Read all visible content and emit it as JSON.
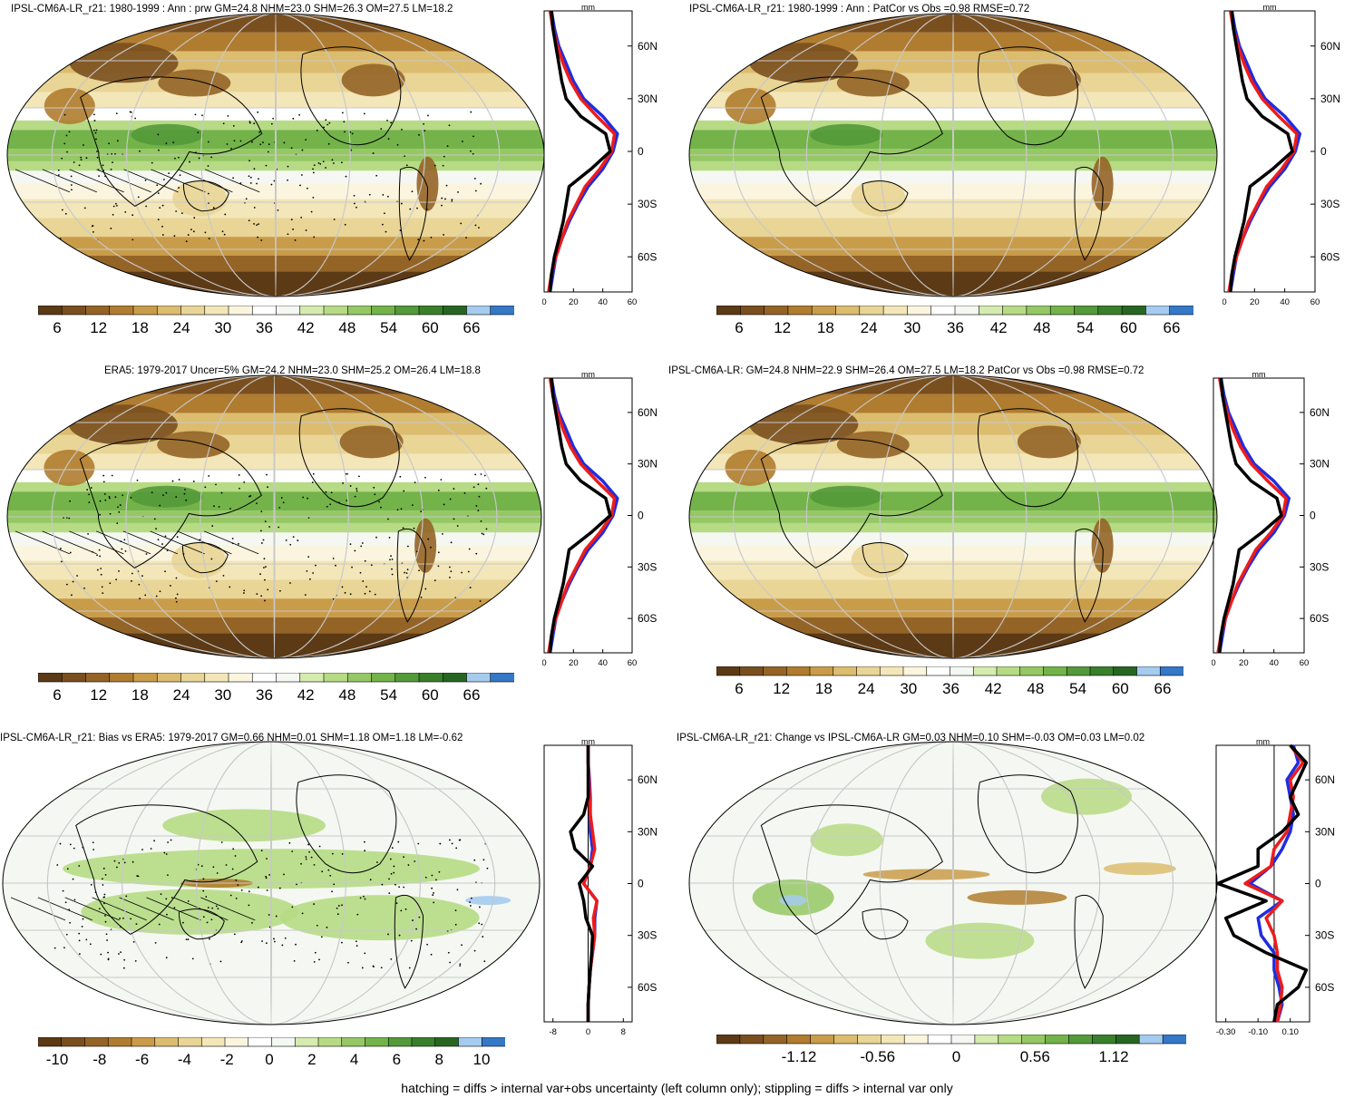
{
  "footer_note": "hatching = diffs > internal var+obs uncertainty (left column only); stippling = diffs > internal var only",
  "colors": {
    "palette": [
      "#5c3a16",
      "#7a4f1f",
      "#946427",
      "#b07c2f",
      "#c99c4a",
      "#dcbd6f",
      "#e9d596",
      "#f3e6b8",
      "#fbf5e0",
      "#ffffff",
      "#f5f8f2",
      "#d5ebaf",
      "#b6db84",
      "#95c864",
      "#73b34a",
      "#54993a",
      "#3a7f2c",
      "#276622",
      "#a5cbef",
      "#3478c7"
    ],
    "obs_line": "#000000",
    "model_line": "#1f2de0",
    "alt_line": "#ee1b1b",
    "grid": "#c8c8c8"
  },
  "panels": [
    {
      "title": "IPSL-CM6A-LR_r21: 1980-1999 : Ann : prw GM=24.8 NHM=23.0 SHM=26.3 OM=27.5 LM=18.2",
      "field": "clim",
      "hatch": true,
      "profile_unit": "mm",
      "lat_ticks": [
        "60N",
        "30N",
        "0",
        "30S",
        "60S"
      ],
      "x_ticks": [
        "0",
        "20",
        "40",
        "60"
      ],
      "xlim": [
        0,
        60
      ],
      "colorbar_labels": [
        "6",
        "12",
        "18",
        "24",
        "30",
        "36",
        "42",
        "48",
        "54",
        "60",
        "66"
      ]
    },
    {
      "title": "IPSL-CM6A-LR_r21: 1980-1999 : Ann : PatCor vs Obs =0.98 RMSE=0.72",
      "field": "clim",
      "hatch": false,
      "profile_unit": "mm",
      "lat_ticks": [
        "60N",
        "30N",
        "0",
        "30S",
        "60S"
      ],
      "x_ticks": [
        "0",
        "20",
        "40",
        "60"
      ],
      "xlim": [
        0,
        60
      ],
      "colorbar_labels": [
        "6",
        "12",
        "18",
        "24",
        "30",
        "36",
        "42",
        "48",
        "54",
        "60",
        "66"
      ]
    },
    {
      "title": "ERA5: 1979-2017 Uncer=5% GM=24.2 NHM=23.0 SHM=25.2 OM=26.4 LM=18.8",
      "field": "clim",
      "hatch": true,
      "profile_unit": "mm",
      "lat_ticks": [
        "60N",
        "30N",
        "0",
        "30S",
        "60S"
      ],
      "x_ticks": [
        "0",
        "20",
        "40",
        "60"
      ],
      "xlim": [
        0,
        60
      ],
      "colorbar_labels": [
        "6",
        "12",
        "18",
        "24",
        "30",
        "36",
        "42",
        "48",
        "54",
        "60",
        "66"
      ]
    },
    {
      "title": "IPSL-CM6A-LR: GM=24.8 NHM=22.9 SHM=26.4 OM=27.5 LM=18.2 PatCor vs Obs =0.98 RMSE=0.72",
      "field": "clim",
      "hatch": false,
      "profile_unit": "mm",
      "lat_ticks": [
        "60N",
        "30N",
        "0",
        "30S",
        "60S"
      ],
      "x_ticks": [
        "0",
        "20",
        "40",
        "60"
      ],
      "xlim": [
        0,
        60
      ],
      "colorbar_labels": [
        "6",
        "12",
        "18",
        "24",
        "30",
        "36",
        "42",
        "48",
        "54",
        "60",
        "66"
      ]
    },
    {
      "title": "IPSL-CM6A-LR_r21: Bias vs ERA5: 1979-2017 GM=0.66 NHM=0.01 SHM=1.18 OM=1.18 LM=-0.62",
      "field": "bias",
      "hatch": true,
      "profile_unit": "mm",
      "lat_ticks": [
        "60N",
        "30N",
        "0",
        "30S",
        "60S"
      ],
      "x_ticks": [
        "-8",
        "0",
        "8"
      ],
      "xlim": [
        -10,
        10
      ],
      "colorbar_labels": [
        "-10",
        "-8",
        "-6",
        "-4",
        "-2",
        "0",
        "2",
        "4",
        "6",
        "8",
        "10"
      ]
    },
    {
      "title": "IPSL-CM6A-LR_r21: Change vs IPSL-CM6A-LR GM=0.03 NHM=0.10 SHM=-0.03 OM=0.03 LM=0.02",
      "field": "change",
      "hatch": false,
      "profile_unit": "mm",
      "lat_ticks": [
        "60N",
        "30N",
        "0",
        "30S",
        "60S"
      ],
      "x_ticks": [
        "-0.30",
        "-0.10",
        "0.10"
      ],
      "xlim": [
        -0.36,
        0.22
      ],
      "colorbar_labels": [
        "-1.12",
        "-0.56",
        "0",
        "0.56",
        "1.12"
      ]
    }
  ],
  "chart_data": [
    {
      "type": "line",
      "title": "IPSL-CM6A-LR_r21: 1980-1999 : Ann : prw GM=24.8 NHM=23.0 SHM=26.3 OM=27.5 LM=18.2",
      "xlabel": "mm",
      "ylabel": "",
      "xlim": [
        0,
        60
      ],
      "ylim": [
        -80,
        80
      ],
      "y": [
        -80,
        -70,
        -60,
        -50,
        -40,
        -30,
        -20,
        -10,
        0,
        10,
        20,
        30,
        40,
        50,
        60,
        70,
        80
      ],
      "series": [
        {
          "values": [
            4,
            6,
            8,
            12,
            17,
            23,
            30,
            40,
            47,
            50,
            40,
            27,
            20,
            15,
            10,
            7,
            5
          ]
        },
        {
          "values": [
            3,
            5,
            8,
            12,
            16,
            22,
            28,
            38,
            46,
            48,
            36,
            25,
            18,
            13,
            9,
            6,
            4
          ]
        },
        {
          "values": [
            4,
            5,
            7,
            10,
            13,
            15,
            17,
            32,
            45,
            42,
            25,
            15,
            12,
            10,
            8,
            6,
            5
          ]
        }
      ]
    },
    {
      "type": "line",
      "title": "IPSL-CM6A-LR_r21: 1980-1999 : Ann : PatCor vs Obs =0.98 RMSE=0.72",
      "xlabel": "mm",
      "ylabel": "",
      "xlim": [
        0,
        60
      ],
      "ylim": [
        -80,
        80
      ],
      "y": [
        -80,
        -70,
        -60,
        -50,
        -40,
        -30,
        -20,
        -10,
        0,
        10,
        20,
        30,
        40,
        50,
        60,
        70,
        80
      ],
      "series": [
        {
          "values": [
            4,
            6,
            8,
            12,
            17,
            23,
            30,
            40,
            47,
            50,
            40,
            27,
            20,
            15,
            10,
            7,
            5
          ]
        },
        {
          "values": [
            3,
            5,
            8,
            12,
            16,
            22,
            28,
            38,
            46,
            48,
            36,
            25,
            18,
            13,
            9,
            6,
            4
          ]
        },
        {
          "values": [
            4,
            5,
            7,
            10,
            13,
            15,
            17,
            32,
            45,
            42,
            25,
            15,
            12,
            10,
            8,
            6,
            5
          ]
        }
      ]
    },
    {
      "type": "line",
      "title": "ERA5: 1979-2017 Uncer=5% GM=24.2 NHM=23.0 SHM=25.2 OM=26.4 LM=18.8",
      "xlabel": "mm",
      "ylabel": "",
      "xlim": [
        0,
        60
      ],
      "ylim": [
        -80,
        80
      ],
      "y": [
        -80,
        -70,
        -60,
        -50,
        -40,
        -30,
        -20,
        -10,
        0,
        10,
        20,
        30,
        40,
        50,
        60,
        70,
        80
      ],
      "series": [
        {
          "values": [
            4,
            6,
            8,
            12,
            17,
            23,
            30,
            40,
            47,
            50,
            40,
            27,
            20,
            15,
            10,
            7,
            5
          ]
        },
        {
          "values": [
            3,
            5,
            8,
            12,
            16,
            22,
            28,
            38,
            46,
            48,
            36,
            25,
            18,
            13,
            9,
            6,
            4
          ]
        },
        {
          "values": [
            4,
            5,
            7,
            10,
            13,
            15,
            17,
            32,
            45,
            42,
            25,
            15,
            12,
            10,
            8,
            6,
            5
          ]
        }
      ]
    },
    {
      "type": "line",
      "title": "IPSL-CM6A-LR: GM=24.8 NHM=22.9 SHM=26.4 OM=27.5 LM=18.2 PatCor vs Obs =0.98 RMSE=0.72",
      "xlabel": "mm",
      "ylabel": "",
      "xlim": [
        0,
        60
      ],
      "ylim": [
        -80,
        80
      ],
      "y": [
        -80,
        -70,
        -60,
        -50,
        -40,
        -30,
        -20,
        -10,
        0,
        10,
        20,
        30,
        40,
        50,
        60,
        70,
        80
      ],
      "series": [
        {
          "values": [
            4,
            6,
            8,
            12,
            17,
            23,
            30,
            40,
            47,
            50,
            40,
            27,
            20,
            15,
            10,
            7,
            5
          ]
        },
        {
          "values": [
            3,
            5,
            8,
            12,
            16,
            22,
            28,
            38,
            46,
            48,
            36,
            25,
            18,
            13,
            9,
            6,
            4
          ]
        },
        {
          "values": [
            4,
            5,
            7,
            10,
            13,
            15,
            17,
            32,
            45,
            42,
            25,
            15,
            12,
            10,
            8,
            6,
            5
          ]
        }
      ]
    },
    {
      "type": "line",
      "title": "IPSL-CM6A-LR_r21: Bias vs ERA5: 1979-2017 GM=0.66 NHM=0.01 SHM=1.18 OM=1.18 LM=-0.62",
      "xlabel": "mm",
      "ylabel": "",
      "xlim": [
        -10,
        10
      ],
      "ylim": [
        -80,
        80
      ],
      "y": [
        -80,
        -70,
        -60,
        -50,
        -40,
        -30,
        -20,
        -10,
        0,
        10,
        20,
        30,
        40,
        50,
        60,
        70,
        80
      ],
      "series": [
        {
          "values": [
            0,
            0,
            0.2,
            0.5,
            1,
            1.5,
            1.5,
            2,
            -1,
            0.5,
            1,
            0.5,
            0.5,
            0.5,
            0.3,
            0,
            0
          ]
        },
        {
          "values": [
            0,
            0,
            0.2,
            0.5,
            1,
            1.5,
            1.2,
            2,
            -1,
            0.5,
            1.5,
            1,
            0.5,
            0.3,
            0.2,
            0,
            0
          ]
        },
        {
          "values": [
            0,
            0,
            0.2,
            0.5,
            0.8,
            1,
            -0.5,
            -1,
            -2,
            1,
            -3,
            -4,
            -1,
            0,
            0,
            0,
            0
          ]
        }
      ]
    },
    {
      "type": "line",
      "title": "IPSL-CM6A-LR_r21: Change vs IPSL-CM6A-LR GM=0.03 NHM=0.10 SHM=-0.03 OM=0.03 LM=0.02",
      "xlabel": "mm",
      "ylabel": "",
      "xlim": [
        -0.36,
        0.22
      ],
      "ylim": [
        -80,
        80
      ],
      "y": [
        -80,
        -70,
        -60,
        -50,
        -40,
        -30,
        -20,
        -10,
        0,
        10,
        20,
        30,
        40,
        50,
        60,
        70,
        80
      ],
      "series": [
        {
          "values": [
            0.02,
            0.05,
            0.03,
            0.0,
            0.0,
            -0.08,
            -0.1,
            0.05,
            -0.15,
            -0.02,
            0.05,
            0.1,
            0.12,
            0.1,
            0.08,
            0.15,
            0.12
          ]
        },
        {
          "values": [
            0.02,
            0.04,
            0.05,
            0.02,
            0.02,
            0.0,
            -0.05,
            0.05,
            -0.18,
            -0.02,
            0.0,
            0.08,
            0.1,
            0.12,
            0.1,
            0.18,
            0.1
          ]
        },
        {
          "values": [
            0.0,
            0.02,
            0.15,
            0.2,
            -0.05,
            -0.25,
            -0.3,
            -0.05,
            -0.35,
            -0.1,
            -0.1,
            0.05,
            0.15,
            0.1,
            0.15,
            0.2,
            0.1
          ]
        }
      ]
    }
  ]
}
